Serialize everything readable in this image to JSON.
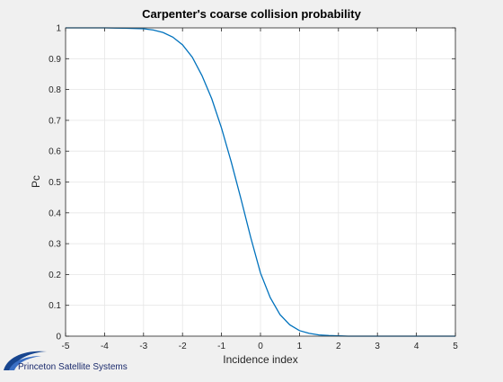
{
  "figure": {
    "background": "#f0f0f0",
    "logo_text": "Princeton Satellite Systems"
  },
  "chart_data": {
    "type": "line",
    "title": "Carpenter's coarse collision probability",
    "xlabel": "Incidence index",
    "ylabel": "Pc",
    "xlim": [
      -5,
      5
    ],
    "ylim": [
      0,
      1
    ],
    "xticks": [
      -5,
      -4,
      -3,
      -2,
      -1,
      0,
      1,
      2,
      3,
      4,
      5
    ],
    "yticks": [
      0,
      0.1,
      0.2,
      0.3,
      0.4,
      0.5,
      0.6,
      0.7,
      0.8,
      0.9,
      1
    ],
    "xtick_labels": [
      "-5",
      "-4",
      "-3",
      "-2",
      "-1",
      "0",
      "1",
      "2",
      "3",
      "4",
      "5"
    ],
    "ytick_labels": [
      "0",
      "0.1",
      "0.2",
      "0.3",
      "0.4",
      "0.5",
      "0.6",
      "0.7",
      "0.8",
      "0.9",
      "1"
    ],
    "grid": true,
    "line_color": "#0072bd",
    "x": [
      -5,
      -4,
      -3.5,
      -3,
      -2.75,
      -2.5,
      -2.25,
      -2,
      -1.75,
      -1.5,
      -1.25,
      -1,
      -0.75,
      -0.5,
      -0.25,
      0,
      0.25,
      0.5,
      0.75,
      1,
      1.25,
      1.5,
      1.75,
      2,
      2.25,
      2.5,
      2.75,
      3,
      3.5,
      4,
      5
    ],
    "y": [
      1,
      1,
      0.999,
      0.997,
      0.993,
      0.985,
      0.97,
      0.945,
      0.905,
      0.845,
      0.77,
      0.675,
      0.565,
      0.445,
      0.32,
      0.205,
      0.125,
      0.07,
      0.037,
      0.018,
      0.009,
      0.004,
      0.002,
      0.001,
      0,
      0,
      0,
      0,
      0,
      0,
      0
    ]
  }
}
